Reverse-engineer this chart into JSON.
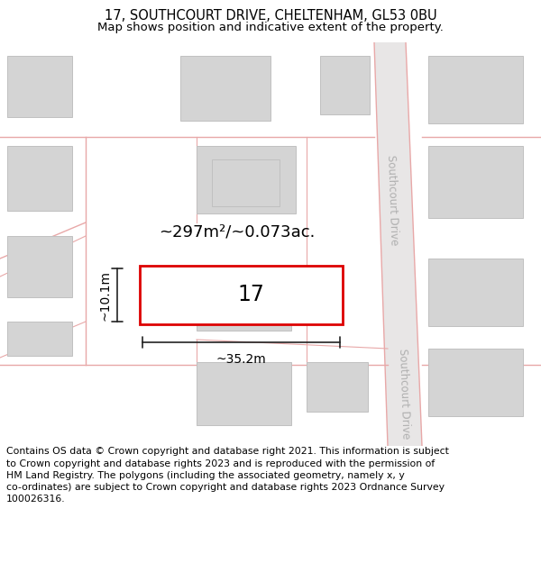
{
  "title_line1": "17, SOUTHCOURT DRIVE, CHELTENHAM, GL53 0BU",
  "title_line2": "Map shows position and indicative extent of the property.",
  "footer_text": "Contains OS data © Crown copyright and database right 2021. This information is subject\nto Crown copyright and database rights 2023 and is reproduced with the permission of\nHM Land Registry. The polygons (including the associated geometry, namely x, y\nco-ordinates) are subject to Crown copyright and database rights 2023 Ordnance Survey\n100026316.",
  "plot_label": "17",
  "area_label": "~297m²/~0.073ac.",
  "width_label": "~35.2m",
  "height_label": "~10.1m",
  "road_label_top": "Southcourt Drive",
  "road_label_bottom": "Southcourt Drive",
  "title_fontsize": 10.5,
  "subtitle_fontsize": 9.5,
  "footer_fontsize": 7.8,
  "map_bg": "#f5f4f4",
  "road_line_color": "#e8a8a8",
  "road_fill_color": "#ede8e8",
  "bld_fill": "#d4d4d4",
  "bld_edge": "#c0c0c0",
  "plot_color": "#dd0000",
  "road_label_color": "#b0b0b0",
  "dim_color": "#222222"
}
